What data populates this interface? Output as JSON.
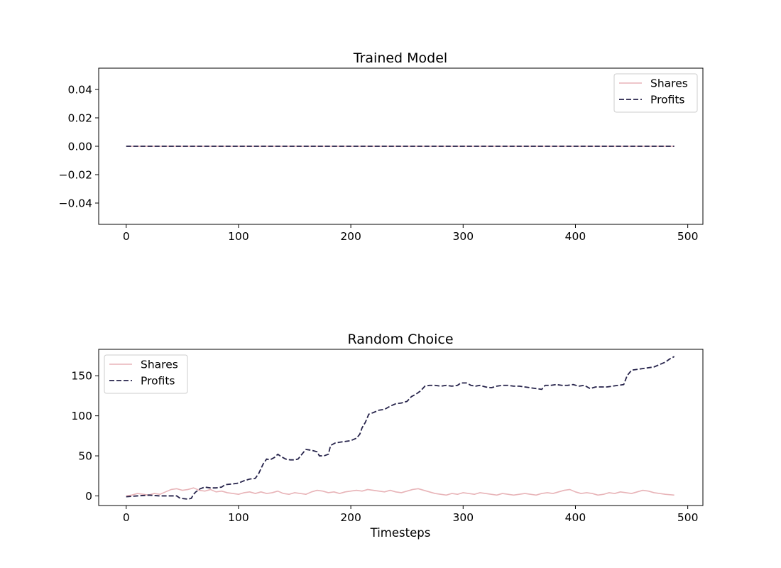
{
  "colors": {
    "shares": "#e8b4b8",
    "profits": "#25224a",
    "axes": "#000000",
    "legend_border": "#cccccc"
  },
  "chart_data": [
    {
      "type": "line",
      "title": "Trained Model",
      "xlabel": "",
      "ylabel": "",
      "xlim": [
        -24.5,
        513.5
      ],
      "ylim": [
        -0.055,
        0.055
      ],
      "xticks": [
        0,
        100,
        200,
        300,
        400,
        500
      ],
      "xtick_labels": [
        "0",
        "100",
        "200",
        "300",
        "400",
        "500"
      ],
      "yticks": [
        -0.04,
        -0.02,
        0.0,
        0.02,
        0.04
      ],
      "ytick_labels": [
        "−0.04",
        "−0.02",
        "0.00",
        "0.02",
        "0.04"
      ],
      "grid": false,
      "legend_position": "upper right",
      "series": [
        {
          "name": "Shares",
          "style": "solid",
          "points": [
            [
              0,
              0
            ],
            [
              488,
              0
            ]
          ]
        },
        {
          "name": "Profits",
          "style": "dashed",
          "points": [
            [
              0,
              0
            ],
            [
              488,
              0
            ]
          ]
        }
      ]
    },
    {
      "type": "line",
      "title": "Random Choice",
      "xlabel": "Timesteps",
      "ylabel": "",
      "xlim": [
        -24.5,
        513.5
      ],
      "ylim": [
        -12,
        183
      ],
      "xticks": [
        0,
        100,
        200,
        300,
        400,
        500
      ],
      "xtick_labels": [
        "0",
        "100",
        "200",
        "300",
        "400",
        "500"
      ],
      "yticks": [
        0,
        50,
        100,
        150
      ],
      "ytick_labels": [
        "0",
        "50",
        "100",
        "150"
      ],
      "grid": false,
      "legend_position": "upper left",
      "series": [
        {
          "name": "Shares",
          "style": "solid",
          "points": [
            [
              0,
              0
            ],
            [
              5,
              1
            ],
            [
              10,
              3
            ],
            [
              15,
              2
            ],
            [
              20,
              1
            ],
            [
              25,
              3
            ],
            [
              30,
              2
            ],
            [
              35,
              5
            ],
            [
              40,
              8
            ],
            [
              45,
              9
            ],
            [
              50,
              7
            ],
            [
              55,
              8
            ],
            [
              60,
              10
            ],
            [
              65,
              7
            ],
            [
              70,
              6
            ],
            [
              75,
              8
            ],
            [
              80,
              5
            ],
            [
              85,
              6
            ],
            [
              90,
              4
            ],
            [
              95,
              3
            ],
            [
              100,
              2
            ],
            [
              105,
              4
            ],
            [
              110,
              5
            ],
            [
              115,
              3
            ],
            [
              120,
              5
            ],
            [
              125,
              3
            ],
            [
              130,
              4
            ],
            [
              135,
              6
            ],
            [
              140,
              3
            ],
            [
              145,
              2
            ],
            [
              150,
              4
            ],
            [
              155,
              3
            ],
            [
              160,
              2
            ],
            [
              165,
              5
            ],
            [
              170,
              7
            ],
            [
              175,
              6
            ],
            [
              180,
              4
            ],
            [
              185,
              5
            ],
            [
              190,
              3
            ],
            [
              195,
              5
            ],
            [
              200,
              6
            ],
            [
              205,
              7
            ],
            [
              210,
              6
            ],
            [
              215,
              8
            ],
            [
              220,
              7
            ],
            [
              225,
              6
            ],
            [
              230,
              5
            ],
            [
              235,
              7
            ],
            [
              240,
              5
            ],
            [
              245,
              4
            ],
            [
              250,
              6
            ],
            [
              255,
              8
            ],
            [
              260,
              9
            ],
            [
              265,
              7
            ],
            [
              270,
              5
            ],
            [
              275,
              3
            ],
            [
              280,
              2
            ],
            [
              285,
              1
            ],
            [
              290,
              3
            ],
            [
              295,
              2
            ],
            [
              300,
              4
            ],
            [
              305,
              3
            ],
            [
              310,
              2
            ],
            [
              315,
              4
            ],
            [
              320,
              3
            ],
            [
              325,
              2
            ],
            [
              330,
              1
            ],
            [
              335,
              3
            ],
            [
              340,
              2
            ],
            [
              345,
              1
            ],
            [
              350,
              2
            ],
            [
              355,
              3
            ],
            [
              360,
              2
            ],
            [
              365,
              1
            ],
            [
              370,
              3
            ],
            [
              375,
              4
            ],
            [
              380,
              3
            ],
            [
              385,
              5
            ],
            [
              390,
              7
            ],
            [
              395,
              8
            ],
            [
              400,
              5
            ],
            [
              405,
              3
            ],
            [
              410,
              4
            ],
            [
              415,
              3
            ],
            [
              420,
              1
            ],
            [
              425,
              2
            ],
            [
              430,
              4
            ],
            [
              435,
              3
            ],
            [
              440,
              5
            ],
            [
              445,
              4
            ],
            [
              450,
              3
            ],
            [
              455,
              5
            ],
            [
              460,
              7
            ],
            [
              465,
              6
            ],
            [
              470,
              4
            ],
            [
              475,
              3
            ],
            [
              480,
              2
            ],
            [
              488,
              1
            ]
          ]
        },
        {
          "name": "Profits",
          "style": "dashed",
          "points": [
            [
              0,
              -1
            ],
            [
              10,
              0
            ],
            [
              20,
              1
            ],
            [
              30,
              0
            ],
            [
              40,
              0
            ],
            [
              45,
              0
            ],
            [
              48,
              -3
            ],
            [
              55,
              -4
            ],
            [
              58,
              -3
            ],
            [
              60,
              2
            ],
            [
              62,
              5
            ],
            [
              66,
              9
            ],
            [
              70,
              11
            ],
            [
              75,
              10
            ],
            [
              80,
              10
            ],
            [
              85,
              11
            ],
            [
              88,
              14
            ],
            [
              95,
              15
            ],
            [
              100,
              16
            ],
            [
              105,
              19
            ],
            [
              110,
              21
            ],
            [
              115,
              22
            ],
            [
              118,
              28
            ],
            [
              122,
              40
            ],
            [
              125,
              46
            ],
            [
              128,
              45
            ],
            [
              132,
              48
            ],
            [
              135,
              52
            ],
            [
              138,
              49
            ],
            [
              142,
              46
            ],
            [
              146,
              45
            ],
            [
              150,
              45
            ],
            [
              153,
              46
            ],
            [
              157,
              53
            ],
            [
              160,
              58
            ],
            [
              165,
              57
            ],
            [
              170,
              55
            ],
            [
              172,
              50
            ],
            [
              176,
              50
            ],
            [
              180,
              52
            ],
            [
              182,
              63
            ],
            [
              186,
              66
            ],
            [
              190,
              67
            ],
            [
              195,
              68
            ],
            [
              200,
              69
            ],
            [
              205,
              72
            ],
            [
              208,
              77
            ],
            [
              210,
              85
            ],
            [
              213,
              92
            ],
            [
              216,
              102
            ],
            [
              220,
              104
            ],
            [
              225,
              107
            ],
            [
              230,
              108
            ],
            [
              235,
              112
            ],
            [
              240,
              115
            ],
            [
              245,
              116
            ],
            [
              250,
              118
            ],
            [
              254,
              124
            ],
            [
              258,
              127
            ],
            [
              262,
              131
            ],
            [
              266,
              137
            ],
            [
              270,
              138
            ],
            [
              275,
              138
            ],
            [
              280,
              137
            ],
            [
              285,
              138
            ],
            [
              290,
              137
            ],
            [
              295,
              138
            ],
            [
              298,
              141
            ],
            [
              303,
              141
            ],
            [
              307,
              138
            ],
            [
              311,
              137
            ],
            [
              315,
              138
            ],
            [
              320,
              136
            ],
            [
              325,
              135
            ],
            [
              330,
              137
            ],
            [
              335,
              138
            ],
            [
              340,
              138
            ],
            [
              345,
              137
            ],
            [
              350,
              137
            ],
            [
              355,
              136
            ],
            [
              360,
              135
            ],
            [
              365,
              134
            ],
            [
              370,
              133
            ],
            [
              373,
              138
            ],
            [
              378,
              138
            ],
            [
              383,
              139
            ],
            [
              388,
              138
            ],
            [
              393,
              138
            ],
            [
              398,
              139
            ],
            [
              403,
              137
            ],
            [
              408,
              138
            ],
            [
              413,
              134
            ],
            [
              418,
              136
            ],
            [
              423,
              136
            ],
            [
              428,
              136
            ],
            [
              433,
              137
            ],
            [
              438,
              138
            ],
            [
              443,
              139
            ],
            [
              446,
              150
            ],
            [
              450,
              157
            ],
            [
              455,
              158
            ],
            [
              460,
              159
            ],
            [
              465,
              160
            ],
            [
              470,
              161
            ],
            [
              475,
              164
            ],
            [
              480,
              167
            ],
            [
              484,
              171
            ],
            [
              488,
              174
            ]
          ]
        }
      ]
    }
  ]
}
